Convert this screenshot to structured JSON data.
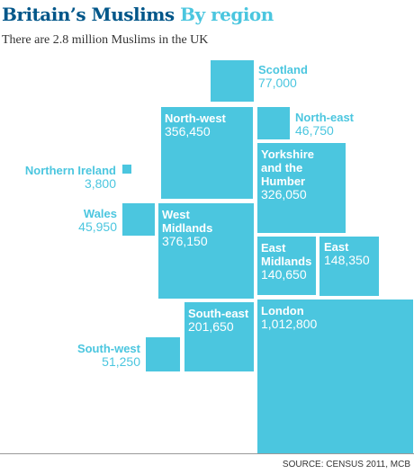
{
  "header": {
    "title_main": "Britain’s Muslims",
    "title_accent": "By region",
    "subtitle": "There are 2.8 million Muslims in the UK"
  },
  "footer": {
    "source": "SOURCE: CENSUS 2011, MCB"
  },
  "colors": {
    "block": "#4bc6df",
    "title": "#005689",
    "accent": "#4bc6df"
  },
  "chart_data": {
    "type": "other",
    "title": "Britain’s Muslims By region",
    "subtitle": "There are 2.8 million Muslims in the UK",
    "regions": [
      {
        "name": "Scotland",
        "value": 77000,
        "display": "77,000"
      },
      {
        "name": "North-west",
        "value": 356450,
        "display": "356,450"
      },
      {
        "name": "North-east",
        "value": 46750,
        "display": "46,750"
      },
      {
        "name": "Northern Ireland",
        "value": 3800,
        "display": "3,800"
      },
      {
        "name": "Yorkshire and the Humber",
        "value": 326050,
        "display": "326,050"
      },
      {
        "name": "Wales",
        "value": 45950,
        "display": "45,950"
      },
      {
        "name": "West Midlands",
        "value": 376150,
        "display": "376,150"
      },
      {
        "name": "East Midlands",
        "value": 140650,
        "display": "140,650"
      },
      {
        "name": "East",
        "value": 148350,
        "display": "148,350"
      },
      {
        "name": "South-east",
        "value": 201650,
        "display": "201,650"
      },
      {
        "name": "London",
        "value": 1012800,
        "display": "1,012,800"
      },
      {
        "name": "South-west",
        "value": 51250,
        "display": "51,250"
      }
    ]
  }
}
